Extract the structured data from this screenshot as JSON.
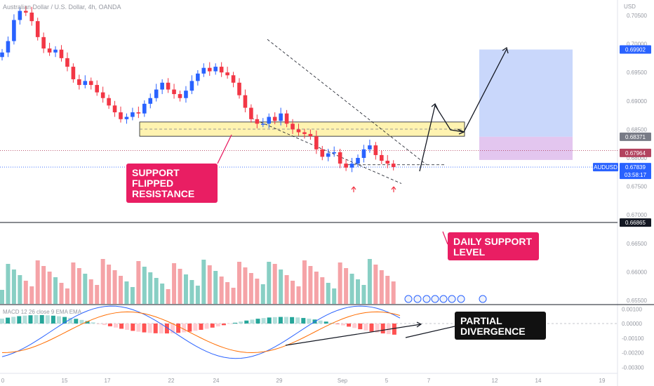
{
  "title": "Australian Dollar / U.S. Dollar, 4h, OANDA",
  "indicator_label": "MACD 12 26 close 9 EMA EMA",
  "chart_data": {
    "type": "candlestick",
    "symbol": "AUDUSD",
    "currency_label": "USD",
    "y_ticks": [
      "0.70500",
      "0.70000",
      "0.69500",
      "0.69000",
      "0.68500",
      "0.68000",
      "0.67500",
      "0.67000",
      "0.66500",
      "0.66000",
      "0.65500"
    ],
    "x_ticks": [
      "0",
      "15",
      "17",
      "22",
      "24",
      "29",
      "Sep",
      "5",
      "7",
      "12",
      "14",
      "19"
    ],
    "macd_ticks": [
      "0.00100",
      "0.00000",
      "-0.00100",
      "-0.00200",
      "-0.00300"
    ],
    "price_badges": [
      {
        "label": "0.69902",
        "value": 0.69902,
        "color": "#2962ff"
      },
      {
        "label": "0.68371",
        "value": 0.68371,
        "color": "#787b86"
      },
      {
        "label": "0.67964",
        "value": 0.67964,
        "color": "#b2435f"
      },
      {
        "label": "AUDUSD",
        "value": 0.67839,
        "color": "#2962ff"
      },
      {
        "label": "0.67839",
        "value": 0.67839,
        "color": "#2962ff"
      },
      {
        "label": "03:58:17",
        "value": 0.67839,
        "color": "#2962ff"
      },
      {
        "label": "0.66865",
        "value": 0.66865,
        "color": "#131722"
      }
    ],
    "close_series": [
      0.6985,
      0.7005,
      0.7042,
      0.7058,
      0.7055,
      0.704,
      0.7012,
      0.6992,
      0.6985,
      0.699,
      0.6975,
      0.696,
      0.6938,
      0.6928,
      0.6935,
      0.6928,
      0.6915,
      0.6905,
      0.6892,
      0.688,
      0.6868,
      0.6872,
      0.688,
      0.6878,
      0.6895,
      0.6905,
      0.692,
      0.6932,
      0.692,
      0.6912,
      0.6905,
      0.6918,
      0.6935,
      0.6948,
      0.6958,
      0.6952,
      0.696,
      0.695,
      0.6945,
      0.6932,
      0.691,
      0.6888,
      0.6868,
      0.686,
      0.686,
      0.6872,
      0.6865,
      0.6878,
      0.686,
      0.685,
      0.6845,
      0.6842,
      0.6838,
      0.6815,
      0.6802,
      0.6808,
      0.681,
      0.679,
      0.6783,
      0.679,
      0.68,
      0.6815,
      0.6822,
      0.6805,
      0.6795,
      0.679,
      0.6784
    ],
    "support_resistance_zone": [
      0.6838,
      0.6863
    ],
    "target_box": {
      "entry": 0.68371,
      "take_profit": 0.69902,
      "stop": 0.67964
    },
    "current_price": 0.67839,
    "daily_support": 0.66865
  },
  "annotations": {
    "support_flipped": [
      "SUPPORT",
      "FLIPPED",
      "RESISTANCE"
    ],
    "daily_support": [
      "DAILY SUPPORT",
      "LEVEL"
    ],
    "partial_divergence": [
      "PARTIAL",
      "DIVERGENCE"
    ]
  },
  "colors": {
    "up": "#2962ff",
    "down": "#f23645",
    "zone": "#fff3b0",
    "reward": "#c9d7fb",
    "risk": "#e3c6ef",
    "vol_up": "#88cfc4",
    "vol_down": "#f5a3a7"
  }
}
